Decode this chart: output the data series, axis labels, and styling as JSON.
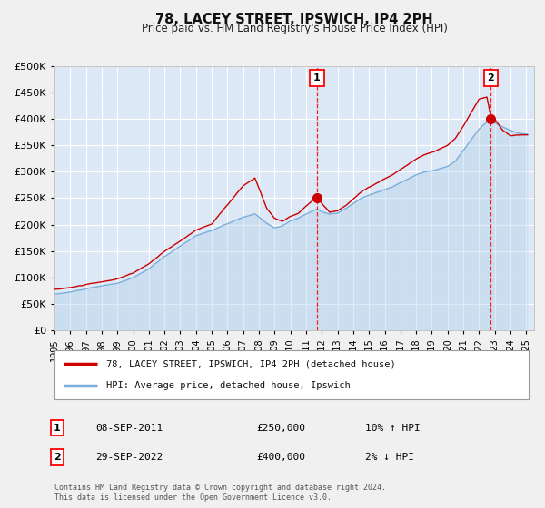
{
  "title": "78, LACEY STREET, IPSWICH, IP4 2PH",
  "subtitle": "Price paid vs. HM Land Registry's House Price Index (HPI)",
  "background_color": "#f0f0f0",
  "plot_bg_color": "#dce8f5",
  "grid_color": "#ffffff",
  "hpi_color": "#7aadda",
  "hpi_fill_color": "#b8d4ec",
  "price_color": "#cc0000",
  "marker_color": "#cc0000",
  "ylim": [
    0,
    500000
  ],
  "yticks": [
    0,
    50000,
    100000,
    150000,
    200000,
    250000,
    300000,
    350000,
    400000,
    450000,
    500000
  ],
  "sale1_price": 250000,
  "sale1_x": 2011.69,
  "sale1_label": "1",
  "sale2_price": 400000,
  "sale2_x": 2022.75,
  "sale2_label": "2",
  "legend_line1": "78, LACEY STREET, IPSWICH, IP4 2PH (detached house)",
  "legend_line2": "HPI: Average price, detached house, Ipswich",
  "annotation1_date": "08-SEP-2011",
  "annotation1_price": "£250,000",
  "annotation1_hpi": "10% ↑ HPI",
  "annotation2_date": "29-SEP-2022",
  "annotation2_price": "£400,000",
  "annotation2_hpi": "2% ↓ HPI",
  "footer": "Contains HM Land Registry data © Crown copyright and database right 2024.\nThis data is licensed under the Open Government Licence v3.0."
}
